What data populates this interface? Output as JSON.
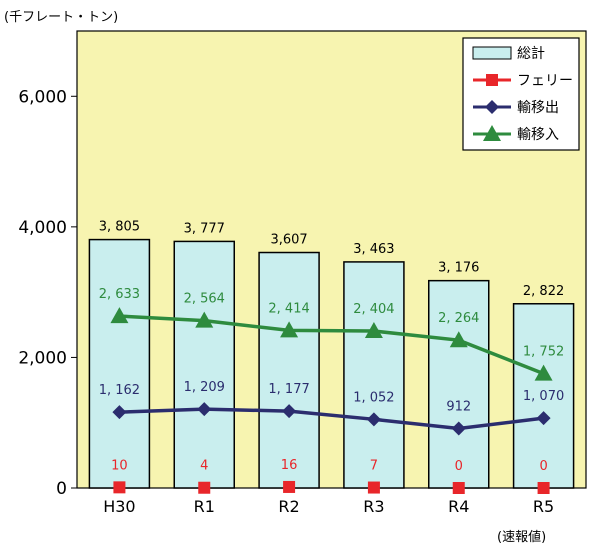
{
  "unit": "(千フレート・トン)",
  "note": "(速報値)",
  "chart_data": {
    "type": "bar+line",
    "categories": [
      "H30",
      "R1",
      "R2",
      "R3",
      "R4",
      "R5"
    ],
    "ylim": [
      0,
      7000
    ],
    "yticks": [
      0,
      2000,
      4000,
      6000
    ],
    "ytick_labels": [
      "0",
      "2,000",
      "4,000",
      "6,000"
    ],
    "grid": false,
    "legend_position": "top-right",
    "series": [
      {
        "name": "総計",
        "type": "bar",
        "color": "#c9eeee",
        "stroke": "#000000",
        "values": [
          3805,
          3777,
          3607,
          3463,
          3176,
          2822
        ],
        "labels": [
          "3, 805",
          "3, 777",
          "3,607",
          "3, 463",
          "3, 176",
          "2, 822"
        ],
        "label_color": "#000000"
      },
      {
        "name": "フェリー",
        "type": "line",
        "marker": "square",
        "color": "#e8262a",
        "line": false,
        "values": [
          10,
          4,
          16,
          7,
          0,
          0
        ],
        "labels": [
          "10",
          "4",
          "16",
          "7",
          "0",
          "0"
        ],
        "label_color": "#e8262a"
      },
      {
        "name": "輸移出",
        "type": "line",
        "marker": "diamond",
        "color": "#2b2d6e",
        "values": [
          1162,
          1209,
          1177,
          1052,
          912,
          1070
        ],
        "labels": [
          "1, 162",
          "1, 209",
          "1, 177",
          "1, 052",
          "912",
          "1, 070"
        ],
        "label_color": "#2b2d6e"
      },
      {
        "name": "輸移入",
        "type": "line",
        "marker": "triangle",
        "color": "#2e8b3e",
        "values": [
          2633,
          2564,
          2414,
          2404,
          2264,
          1752
        ],
        "labels": [
          "2, 633",
          "2, 564",
          "2, 414",
          "2, 404",
          "2, 264",
          "1, 752"
        ],
        "label_color": "#2e8b3e"
      }
    ],
    "colors": {
      "plot_background": "#f7f4b0"
    }
  }
}
